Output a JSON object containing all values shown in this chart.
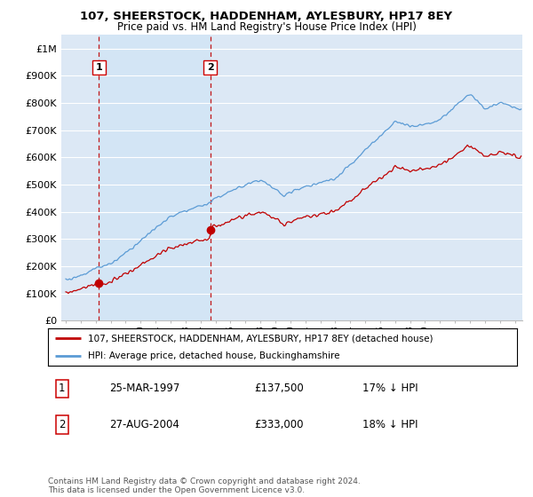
{
  "title": "107, SHEERSTOCK, HADDENHAM, AYLESBURY, HP17 8EY",
  "subtitle": "Price paid vs. HM Land Registry's House Price Index (HPI)",
  "legend_line1": "107, SHEERSTOCK, HADDENHAM, AYLESBURY, HP17 8EY (detached house)",
  "legend_line2": "HPI: Average price, detached house, Buckinghamshire",
  "sale1_date": "25-MAR-1997",
  "sale1_price": 137500,
  "sale1_year": 1997.21,
  "sale1_label": "17% ↓ HPI",
  "sale2_date": "27-AUG-2004",
  "sale2_price": 333000,
  "sale2_year": 2004.65,
  "sale2_label": "18% ↓ HPI",
  "footer": "Contains HM Land Registry data © Crown copyright and database right 2024.\nThis data is licensed under the Open Government Licence v3.0.",
  "hpi_color": "#5b9bd5",
  "price_color": "#c00000",
  "sale_marker_color": "#c00000",
  "vline_color": "#c00000",
  "fig_bg_color": "#ffffff",
  "plot_bg_color": "#dce8f5",
  "grid_color": "#ffffff",
  "shade_color": "#d0e4f5",
  "ylim": [
    0,
    1050000
  ],
  "yticks": [
    0,
    100000,
    200000,
    300000,
    400000,
    500000,
    600000,
    700000,
    800000,
    900000,
    1000000
  ],
  "ytick_labels": [
    "£0",
    "£100K",
    "£200K",
    "£300K",
    "£400K",
    "£500K",
    "£600K",
    "£700K",
    "£800K",
    "£900K",
    "£1M"
  ],
  "xlim_start": 1994.7,
  "xlim_end": 2025.5
}
